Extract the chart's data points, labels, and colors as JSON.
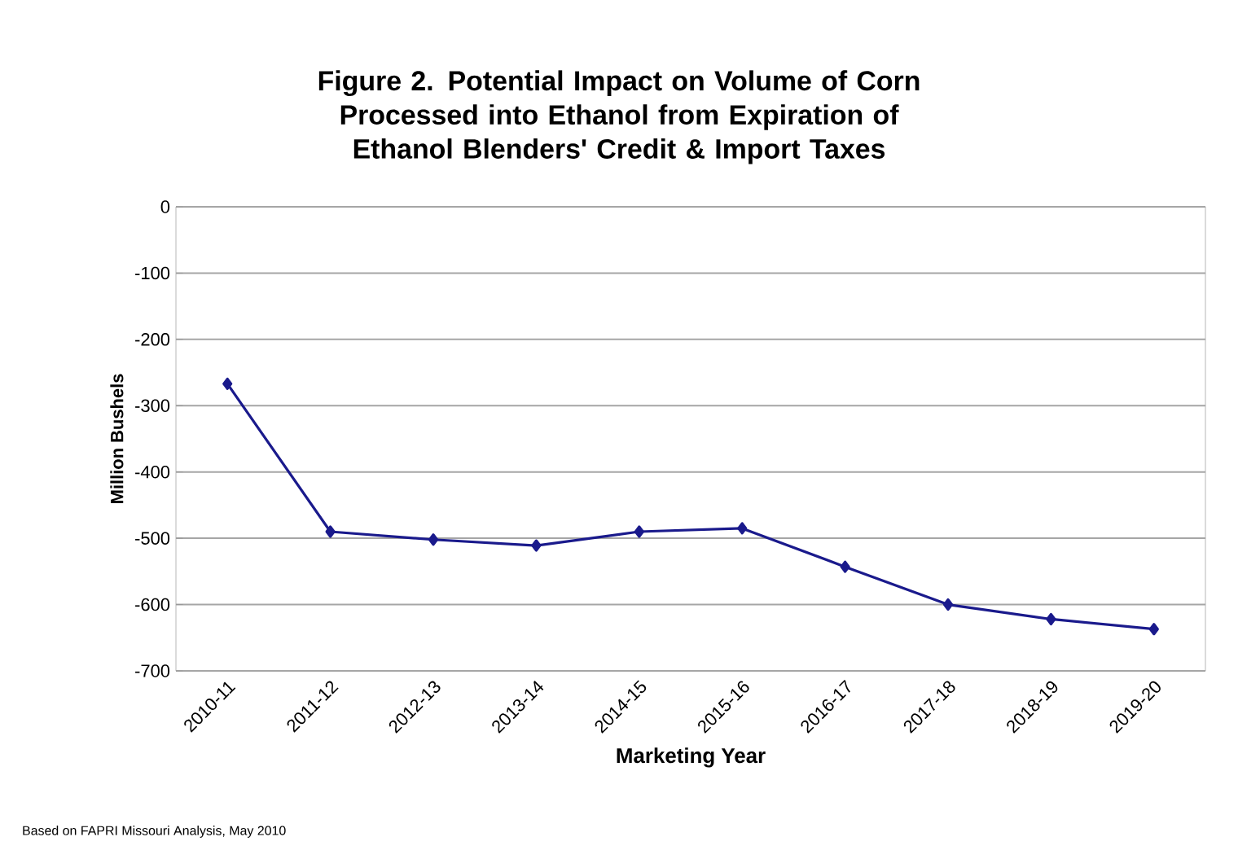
{
  "chart_data": {
    "type": "line",
    "title": "Figure 2. Potential Impact on Volume of Corn Processed into Ethanol from Expiration of Ethanol Blenders' Credit & Import Taxes",
    "xlabel": "Marketing Year",
    "ylabel": "Million Bushels",
    "categories": [
      "2010-11",
      "2011-12",
      "2012-13",
      "2013-14",
      "2014-15",
      "2015-16",
      "2016-17",
      "2017-18",
      "2018-19",
      "2019-20"
    ],
    "series": [
      {
        "color": "#1a1a8c",
        "values": [
          -267,
          -490,
          -502,
          -511,
          -490,
          -485,
          -543,
          -600,
          -622,
          -637
        ]
      }
    ],
    "ylim": [
      -700,
      0
    ],
    "yticks": [
      -700,
      -600,
      -500,
      -400,
      -300,
      -200,
      -100,
      0
    ],
    "grid": "y",
    "marker": "diamond",
    "line_style": "solid",
    "annotations": [
      "Based on FAPRI Missouri Analysis, May 2010"
    ]
  }
}
